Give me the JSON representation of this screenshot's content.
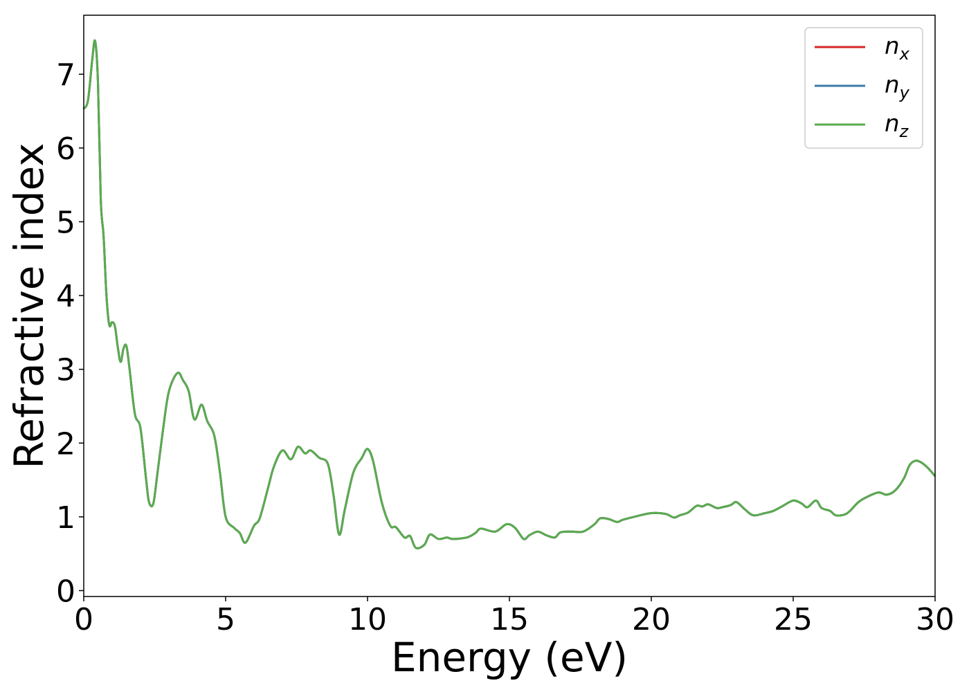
{
  "chart_data": {
    "type": "line",
    "xlabel": "Energy (eV)",
    "ylabel": "Refractive index",
    "xlim": [
      0,
      30
    ],
    "ylim": [
      -0.08,
      7.8
    ],
    "xticks": [
      0,
      5,
      10,
      15,
      20,
      25,
      30
    ],
    "yticks": [
      0,
      1,
      2,
      3,
      4,
      5,
      6,
      7
    ],
    "grid": false,
    "legend_position": "top-right",
    "series": [
      {
        "name": "n_x",
        "label_main": "n",
        "label_sub": "x",
        "color": "#d62728",
        "x": [
          0,
          0.15,
          0.3,
          0.4,
          0.5,
          0.6,
          0.7,
          0.8,
          0.9,
          1.0,
          1.1,
          1.2,
          1.3,
          1.4,
          1.5,
          1.6,
          1.8,
          2.0,
          2.2,
          2.3,
          2.45,
          2.6,
          2.8,
          3.0,
          3.3,
          3.5,
          3.7,
          3.9,
          4.15,
          4.35,
          4.6,
          4.8,
          5.0,
          5.3,
          5.5,
          5.7,
          6.0,
          6.2,
          6.5,
          6.7,
          7.0,
          7.3,
          7.55,
          7.8,
          8.0,
          8.3,
          8.6,
          8.8,
          9.0,
          9.2,
          9.5,
          9.8,
          10.0,
          10.2,
          10.5,
          10.8,
          11.0,
          11.3,
          11.5,
          11.7,
          12.0,
          12.2,
          12.5,
          12.8,
          13.0,
          13.5,
          13.8,
          14.0,
          14.5,
          14.9,
          15.2,
          15.5,
          15.7,
          16.0,
          16.3,
          16.6,
          16.8,
          17.2,
          17.6,
          18.0,
          18.2,
          18.5,
          18.8,
          19.0,
          19.5,
          20.0,
          20.5,
          20.8,
          21.0,
          21.3,
          21.6,
          21.8,
          22.0,
          22.3,
          22.5,
          22.8,
          23.0,
          23.3,
          23.6,
          24.0,
          24.3,
          24.6,
          25.0,
          25.3,
          25.5,
          25.8,
          26.0,
          26.3,
          26.5,
          26.8,
          27.0,
          27.3,
          27.6,
          28.0,
          28.3,
          28.6,
          28.9,
          29.1,
          29.3,
          29.5,
          29.7,
          29.85,
          30.0
        ],
        "y": [
          6.53,
          6.65,
          7.2,
          7.45,
          6.9,
          5.3,
          4.8,
          4.0,
          3.6,
          3.64,
          3.58,
          3.3,
          3.1,
          3.28,
          3.32,
          3.05,
          2.4,
          2.2,
          1.5,
          1.2,
          1.18,
          1.6,
          2.2,
          2.7,
          2.95,
          2.85,
          2.7,
          2.32,
          2.52,
          2.3,
          2.1,
          1.6,
          1.0,
          0.85,
          0.78,
          0.65,
          0.88,
          0.98,
          1.4,
          1.68,
          1.9,
          1.78,
          1.95,
          1.86,
          1.9,
          1.8,
          1.72,
          1.3,
          0.76,
          1.1,
          1.6,
          1.8,
          1.92,
          1.75,
          1.2,
          0.88,
          0.86,
          0.72,
          0.74,
          0.58,
          0.62,
          0.76,
          0.7,
          0.72,
          0.7,
          0.72,
          0.78,
          0.84,
          0.8,
          0.9,
          0.85,
          0.7,
          0.75,
          0.8,
          0.75,
          0.72,
          0.79,
          0.8,
          0.8,
          0.9,
          0.98,
          0.97,
          0.93,
          0.96,
          1.01,
          1.05,
          1.04,
          0.99,
          1.02,
          1.06,
          1.15,
          1.14,
          1.17,
          1.12,
          1.13,
          1.16,
          1.2,
          1.1,
          1.02,
          1.05,
          1.08,
          1.14,
          1.22,
          1.18,
          1.13,
          1.22,
          1.12,
          1.08,
          1.02,
          1.03,
          1.08,
          1.2,
          1.27,
          1.33,
          1.3,
          1.36,
          1.52,
          1.7,
          1.76,
          1.74,
          1.68,
          1.62,
          1.55
        ]
      },
      {
        "name": "n_y",
        "label_main": "n",
        "label_sub": "y",
        "color": "#3b79a8",
        "x": [
          0,
          0.15,
          0.3,
          0.4,
          0.5,
          0.6,
          0.7,
          0.8,
          0.9,
          1.0,
          1.1,
          1.2,
          1.3,
          1.4,
          1.5,
          1.6,
          1.8,
          2.0,
          2.2,
          2.3,
          2.45,
          2.6,
          2.8,
          3.0,
          3.3,
          3.5,
          3.7,
          3.9,
          4.15,
          4.35,
          4.6,
          4.8,
          5.0,
          5.3,
          5.5,
          5.7,
          6.0,
          6.2,
          6.5,
          6.7,
          7.0,
          7.3,
          7.55,
          7.8,
          8.0,
          8.3,
          8.6,
          8.8,
          9.0,
          9.2,
          9.5,
          9.8,
          10.0,
          10.2,
          10.5,
          10.8,
          11.0,
          11.3,
          11.5,
          11.7,
          12.0,
          12.2,
          12.5,
          12.8,
          13.0,
          13.5,
          13.8,
          14.0,
          14.5,
          14.9,
          15.2,
          15.5,
          15.7,
          16.0,
          16.3,
          16.6,
          16.8,
          17.2,
          17.6,
          18.0,
          18.2,
          18.5,
          18.8,
          19.0,
          19.5,
          20.0,
          20.5,
          20.8,
          21.0,
          21.3,
          21.6,
          21.8,
          22.0,
          22.3,
          22.5,
          22.8,
          23.0,
          23.3,
          23.6,
          24.0,
          24.3,
          24.6,
          25.0,
          25.3,
          25.5,
          25.8,
          26.0,
          26.3,
          26.5,
          26.8,
          27.0,
          27.3,
          27.6,
          28.0,
          28.3,
          28.6,
          28.9,
          29.1,
          29.3,
          29.5,
          29.7,
          29.85,
          30.0
        ],
        "y": [
          6.53,
          6.65,
          7.2,
          7.45,
          6.9,
          5.3,
          4.8,
          4.0,
          3.6,
          3.64,
          3.58,
          3.3,
          3.1,
          3.28,
          3.32,
          3.05,
          2.4,
          2.2,
          1.5,
          1.2,
          1.18,
          1.6,
          2.2,
          2.7,
          2.95,
          2.85,
          2.7,
          2.32,
          2.52,
          2.3,
          2.1,
          1.6,
          1.0,
          0.85,
          0.78,
          0.65,
          0.88,
          0.98,
          1.4,
          1.68,
          1.9,
          1.78,
          1.95,
          1.86,
          1.9,
          1.8,
          1.72,
          1.3,
          0.76,
          1.1,
          1.6,
          1.8,
          1.92,
          1.75,
          1.2,
          0.88,
          0.86,
          0.72,
          0.74,
          0.58,
          0.62,
          0.76,
          0.7,
          0.72,
          0.7,
          0.72,
          0.78,
          0.84,
          0.8,
          0.9,
          0.85,
          0.7,
          0.75,
          0.8,
          0.75,
          0.72,
          0.79,
          0.8,
          0.8,
          0.9,
          0.98,
          0.97,
          0.93,
          0.96,
          1.01,
          1.05,
          1.04,
          0.99,
          1.02,
          1.06,
          1.15,
          1.14,
          1.17,
          1.12,
          1.13,
          1.16,
          1.2,
          1.1,
          1.02,
          1.05,
          1.08,
          1.14,
          1.22,
          1.18,
          1.13,
          1.22,
          1.12,
          1.08,
          1.02,
          1.03,
          1.08,
          1.2,
          1.27,
          1.33,
          1.3,
          1.36,
          1.52,
          1.7,
          1.76,
          1.74,
          1.68,
          1.62,
          1.55
        ]
      },
      {
        "name": "n_z",
        "label_main": "n",
        "label_sub": "z",
        "color": "#5aab4f",
        "x": [
          0,
          0.15,
          0.3,
          0.4,
          0.5,
          0.6,
          0.7,
          0.8,
          0.9,
          1.0,
          1.1,
          1.2,
          1.3,
          1.4,
          1.5,
          1.6,
          1.8,
          2.0,
          2.2,
          2.3,
          2.45,
          2.6,
          2.8,
          3.0,
          3.3,
          3.5,
          3.7,
          3.9,
          4.15,
          4.35,
          4.6,
          4.8,
          5.0,
          5.3,
          5.5,
          5.7,
          6.0,
          6.2,
          6.5,
          6.7,
          7.0,
          7.3,
          7.55,
          7.8,
          8.0,
          8.3,
          8.6,
          8.8,
          9.0,
          9.2,
          9.5,
          9.8,
          10.0,
          10.2,
          10.5,
          10.8,
          11.0,
          11.3,
          11.5,
          11.7,
          12.0,
          12.2,
          12.5,
          12.8,
          13.0,
          13.5,
          13.8,
          14.0,
          14.5,
          14.9,
          15.2,
          15.5,
          15.7,
          16.0,
          16.3,
          16.6,
          16.8,
          17.2,
          17.6,
          18.0,
          18.2,
          18.5,
          18.8,
          19.0,
          19.5,
          20.0,
          20.5,
          20.8,
          21.0,
          21.3,
          21.6,
          21.8,
          22.0,
          22.3,
          22.5,
          22.8,
          23.0,
          23.3,
          23.6,
          24.0,
          24.3,
          24.6,
          25.0,
          25.3,
          25.5,
          25.8,
          26.0,
          26.3,
          26.5,
          26.8,
          27.0,
          27.3,
          27.6,
          28.0,
          28.3,
          28.6,
          28.9,
          29.1,
          29.3,
          29.5,
          29.7,
          29.85,
          30.0
        ],
        "y": [
          6.53,
          6.65,
          7.2,
          7.45,
          6.9,
          5.3,
          4.8,
          4.0,
          3.6,
          3.64,
          3.58,
          3.3,
          3.1,
          3.28,
          3.32,
          3.05,
          2.4,
          2.2,
          1.5,
          1.2,
          1.18,
          1.6,
          2.2,
          2.7,
          2.95,
          2.85,
          2.7,
          2.32,
          2.52,
          2.3,
          2.1,
          1.6,
          1.0,
          0.85,
          0.78,
          0.65,
          0.88,
          0.98,
          1.4,
          1.68,
          1.9,
          1.78,
          1.95,
          1.86,
          1.9,
          1.8,
          1.72,
          1.3,
          0.76,
          1.1,
          1.6,
          1.8,
          1.92,
          1.75,
          1.2,
          0.88,
          0.86,
          0.72,
          0.74,
          0.58,
          0.62,
          0.76,
          0.7,
          0.72,
          0.7,
          0.72,
          0.78,
          0.84,
          0.8,
          0.9,
          0.85,
          0.7,
          0.75,
          0.8,
          0.75,
          0.72,
          0.79,
          0.8,
          0.8,
          0.9,
          0.98,
          0.97,
          0.93,
          0.96,
          1.01,
          1.05,
          1.04,
          0.99,
          1.02,
          1.06,
          1.15,
          1.14,
          1.17,
          1.12,
          1.13,
          1.16,
          1.2,
          1.1,
          1.02,
          1.05,
          1.08,
          1.14,
          1.22,
          1.18,
          1.13,
          1.22,
          1.12,
          1.08,
          1.02,
          1.03,
          1.08,
          1.2,
          1.27,
          1.33,
          1.3,
          1.36,
          1.52,
          1.7,
          1.76,
          1.74,
          1.68,
          1.62,
          1.55
        ]
      }
    ]
  }
}
